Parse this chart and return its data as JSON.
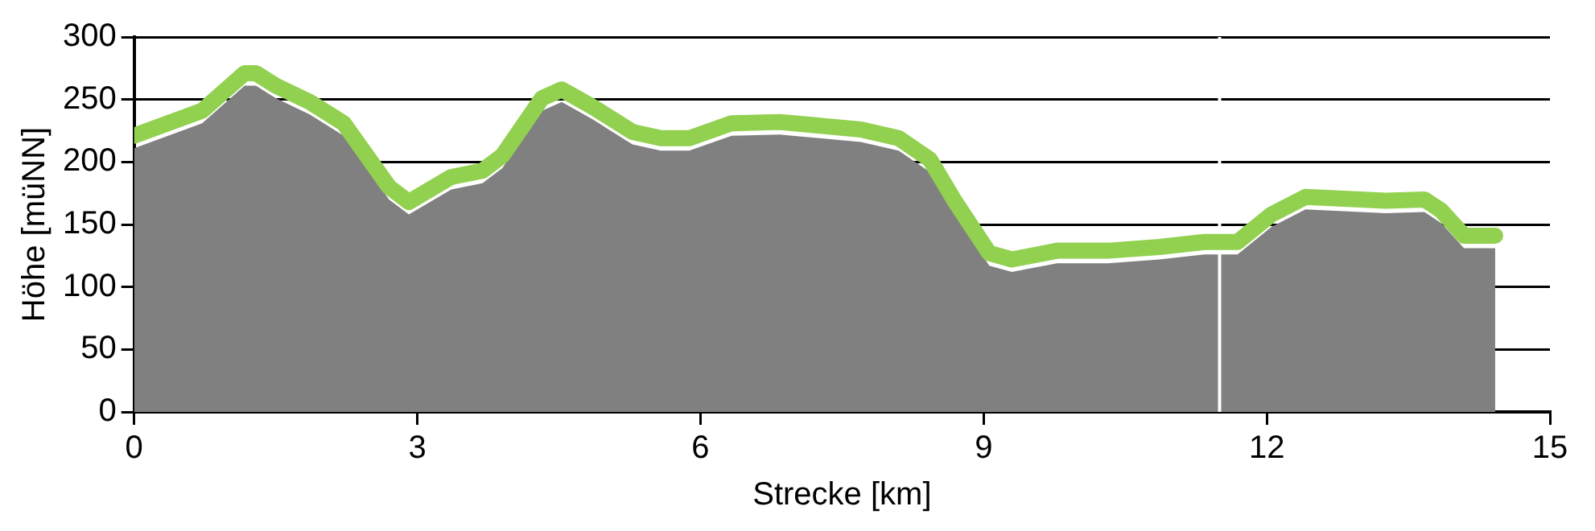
{
  "chart_data": {
    "type": "area",
    "xlabel": "Strecke [km]",
    "ylabel": "Höhe [müNN]",
    "x": [
      0,
      0.72,
      1.17,
      1.29,
      1.5,
      1.86,
      2.22,
      2.7,
      2.91,
      3.36,
      3.69,
      3.9,
      4.32,
      4.53,
      4.86,
      5.28,
      5.58,
      5.88,
      6.33,
      6.84,
      7.7,
      8.1,
      8.43,
      8.7,
      9.06,
      9.3,
      9.78,
      10.32,
      10.86,
      11.34,
      11.69,
      12.05,
      12.41,
      13.26,
      13.67,
      13.85,
      14.09,
      14.42
    ],
    "series": [
      {
        "type": "area",
        "color": "#808080",
        "values": [
          211,
          231,
          261,
          261,
          251,
          238,
          221,
          170,
          158,
          178,
          183,
          195,
          241,
          248,
          234,
          214,
          209,
          209,
          221,
          222,
          216,
          209,
          192,
          158,
          117,
          112,
          119,
          119,
          122,
          126,
          126,
          148,
          162,
          159,
          160,
          151,
          131,
          131
        ]
      },
      {
        "type": "line",
        "color": "#92d050",
        "values": [
          221,
          241,
          271,
          271,
          261,
          248,
          231,
          180,
          168,
          188,
          193,
          205,
          251,
          258,
          244,
          224,
          219,
          219,
          231,
          232,
          226,
          219,
          202,
          168,
          127,
          122,
          129,
          129,
          132,
          136,
          136,
          158,
          172,
          169,
          170,
          161,
          141,
          141
        ]
      }
    ],
    "xlim": [
      0,
      15
    ],
    "xticks": [
      0,
      3,
      6,
      9,
      12,
      15
    ],
    "ylim": [
      0,
      300
    ],
    "yticks": [
      0,
      50,
      100,
      150,
      200,
      250,
      300
    ],
    "grid": "y",
    "legend": false,
    "ref_lines": [
      {
        "axis": "x",
        "value": 11.5,
        "color": "#ffffff"
      }
    ]
  }
}
